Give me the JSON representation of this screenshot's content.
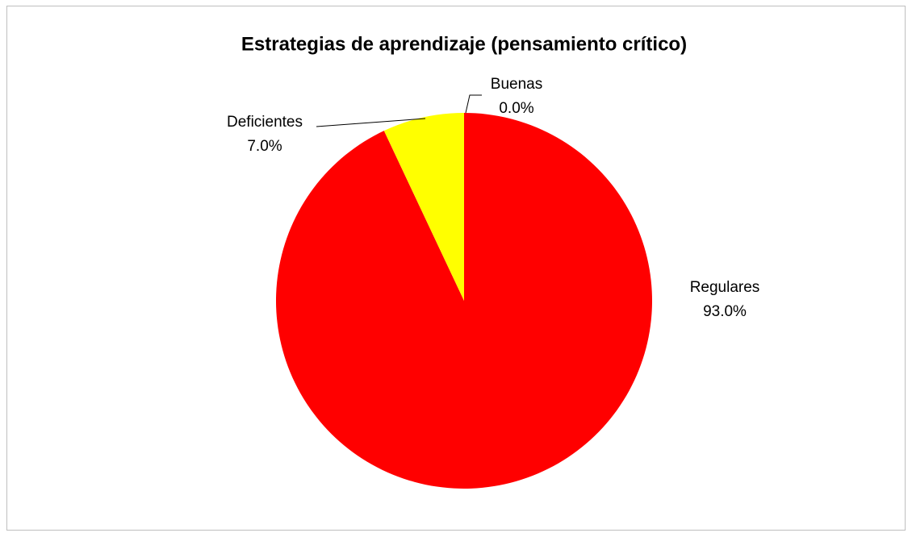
{
  "chart_data": {
    "type": "pie",
    "title": "Estrategias de aprendizaje (pensamiento crítico)",
    "categories": [
      "Buenas",
      "Regulares",
      "Deficientes"
    ],
    "values": [
      0,
      93,
      7
    ],
    "value_labels": [
      "0.0%",
      "93.0%",
      "7.0%"
    ],
    "colors": [
      "#00b050",
      "#ff0000",
      "#ffff00"
    ]
  }
}
